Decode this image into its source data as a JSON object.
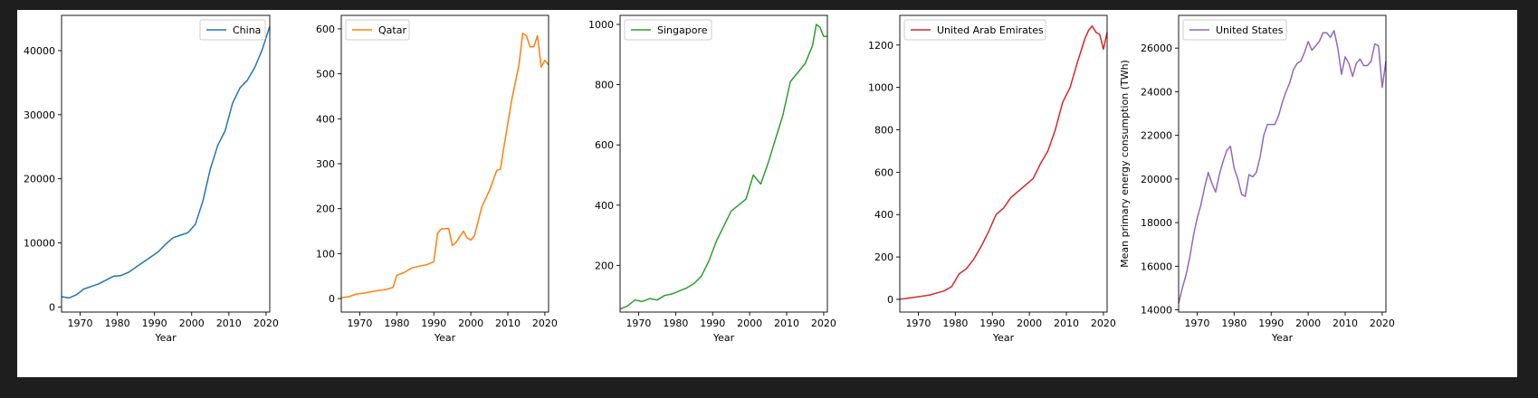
{
  "chart_data": [
    {
      "type": "line",
      "xlabel": "Year",
      "ylabel": "",
      "xlim": [
        1965,
        2021
      ],
      "ylim": [
        -800,
        45500
      ],
      "xticks": [
        1970,
        1980,
        1990,
        2000,
        2010,
        2020
      ],
      "yticks": [
        0,
        10000,
        20000,
        30000,
        40000
      ],
      "legend": "top-right",
      "series": [
        {
          "name": "China",
          "color": "#1f77b4",
          "x": [
            1965,
            1967,
            1969,
            1971,
            1973,
            1975,
            1977,
            1979,
            1981,
            1983,
            1985,
            1987,
            1989,
            1991,
            1993,
            1995,
            1997,
            1999,
            2001,
            2003,
            2005,
            2007,
            2009,
            2011,
            2013,
            2015,
            2017,
            2019,
            2021
          ],
          "y": [
            1600,
            1400,
            1900,
            2800,
            3200,
            3600,
            4200,
            4800,
            4900,
            5400,
            6200,
            7000,
            7800,
            8600,
            9800,
            10800,
            11200,
            11600,
            12900,
            16500,
            21500,
            25200,
            27500,
            31800,
            34200,
            35400,
            37400,
            40200,
            43800
          ]
        }
      ]
    },
    {
      "type": "line",
      "xlabel": "Year",
      "ylabel": "",
      "xlim": [
        1965,
        2021
      ],
      "ylim": [
        -30,
        630
      ],
      "xticks": [
        1970,
        1980,
        1990,
        2000,
        2010,
        2020
      ],
      "yticks": [
        0,
        100,
        200,
        300,
        400,
        500,
        600
      ],
      "legend": "top-left",
      "series": [
        {
          "name": "Qatar",
          "color": "#ff7f0e",
          "x": [
            1965,
            1967,
            1969,
            1971,
            1973,
            1975,
            1977,
            1979,
            1980,
            1982,
            1984,
            1986,
            1988,
            1990,
            1991,
            1992,
            1994,
            1995,
            1996,
            1998,
            1999,
            2000,
            2001,
            2003,
            2005,
            2007,
            2008,
            2009,
            2011,
            2013,
            2014,
            2015,
            2016,
            2017,
            2018,
            2019,
            2020,
            2021
          ],
          "y": [
            2,
            4,
            10,
            12,
            15,
            18,
            20,
            25,
            52,
            58,
            68,
            72,
            75,
            82,
            145,
            155,
            156,
            118,
            125,
            150,
            135,
            130,
            140,
            205,
            240,
            285,
            288,
            340,
            440,
            520,
            590,
            585,
            560,
            560,
            585,
            515,
            530,
            520
          ]
        }
      ]
    },
    {
      "type": "line",
      "xlabel": "Year",
      "ylabel": "",
      "xlim": [
        1965,
        2021
      ],
      "ylim": [
        45,
        1030
      ],
      "xticks": [
        1970,
        1980,
        1990,
        2000,
        2010,
        2020
      ],
      "yticks": [
        200,
        400,
        600,
        800,
        1000
      ],
      "legend": "top-left",
      "series": [
        {
          "name": "Singapore",
          "color": "#2ca02c",
          "x": [
            1965,
            1967,
            1969,
            1971,
            1973,
            1975,
            1977,
            1979,
            1981,
            1983,
            1985,
            1987,
            1989,
            1991,
            1993,
            1995,
            1997,
            1999,
            2001,
            2003,
            2005,
            2007,
            2009,
            2011,
            2013,
            2015,
            2017,
            2018,
            2019,
            2020,
            2021
          ],
          "y": [
            55,
            65,
            85,
            80,
            90,
            85,
            100,
            105,
            115,
            125,
            140,
            165,
            215,
            280,
            330,
            380,
            400,
            420,
            500,
            470,
            540,
            620,
            700,
            810,
            840,
            870,
            930,
            1000,
            990,
            960,
            960
          ]
        }
      ]
    },
    {
      "type": "line",
      "xlabel": "Year",
      "ylabel": "",
      "xlim": [
        1965,
        2021
      ],
      "ylim": [
        -60,
        1340
      ],
      "xticks": [
        1970,
        1980,
        1990,
        2000,
        2010,
        2020
      ],
      "yticks": [
        0,
        200,
        400,
        600,
        800,
        1000,
        1200
      ],
      "legend": "top-left",
      "series": [
        {
          "name": "United Arab Emirates",
          "color": "#d62728",
          "x": [
            1965,
            1967,
            1969,
            1971,
            1973,
            1975,
            1977,
            1979,
            1981,
            1983,
            1985,
            1987,
            1989,
            1991,
            1993,
            1995,
            1997,
            1999,
            2001,
            2003,
            2005,
            2007,
            2009,
            2011,
            2013,
            2015,
            2016,
            2017,
            2018,
            2019,
            2020,
            2021
          ],
          "y": [
            0,
            5,
            10,
            15,
            20,
            30,
            40,
            60,
            120,
            145,
            190,
            250,
            320,
            400,
            430,
            480,
            510,
            540,
            570,
            640,
            700,
            800,
            930,
            1000,
            1120,
            1230,
            1270,
            1290,
            1260,
            1250,
            1180,
            1260
          ]
        }
      ]
    },
    {
      "type": "line",
      "xlabel": "Year",
      "ylabel": "Mean primary energy consumption (TWh)",
      "xlim": [
        1965,
        2021
      ],
      "ylim": [
        13900,
        27500
      ],
      "xticks": [
        1970,
        1980,
        1990,
        2000,
        2010,
        2020
      ],
      "yticks": [
        14000,
        16000,
        18000,
        20000,
        22000,
        24000,
        26000
      ],
      "legend": "top-left",
      "series": [
        {
          "name": "United States",
          "color": "#9467bd",
          "x": [
            1965,
            1966,
            1967,
            1968,
            1969,
            1970,
            1971,
            1972,
            1973,
            1974,
            1975,
            1976,
            1977,
            1978,
            1979,
            1980,
            1981,
            1982,
            1983,
            1984,
            1985,
            1986,
            1987,
            1988,
            1989,
            1990,
            1991,
            1992,
            1993,
            1994,
            1995,
            1996,
            1997,
            1998,
            1999,
            2000,
            2001,
            2002,
            2003,
            2004,
            2005,
            2006,
            2007,
            2008,
            2009,
            2010,
            2011,
            2012,
            2013,
            2014,
            2015,
            2016,
            2017,
            2018,
            2019,
            2020,
            2021
          ],
          "y": [
            14300,
            15000,
            15600,
            16400,
            17400,
            18200,
            18800,
            19600,
            20300,
            19800,
            19400,
            20200,
            20800,
            21300,
            21500,
            20500,
            20000,
            19300,
            19200,
            20200,
            20100,
            20300,
            21000,
            22000,
            22500,
            22500,
            22500,
            22900,
            23500,
            24000,
            24400,
            25000,
            25300,
            25400,
            25800,
            26300,
            25900,
            26100,
            26300,
            26700,
            26700,
            26500,
            26800,
            26000,
            24800,
            25600,
            25300,
            24700,
            25300,
            25500,
            25200,
            25200,
            25400,
            26200,
            26100,
            24200,
            25400
          ]
        }
      ]
    }
  ]
}
